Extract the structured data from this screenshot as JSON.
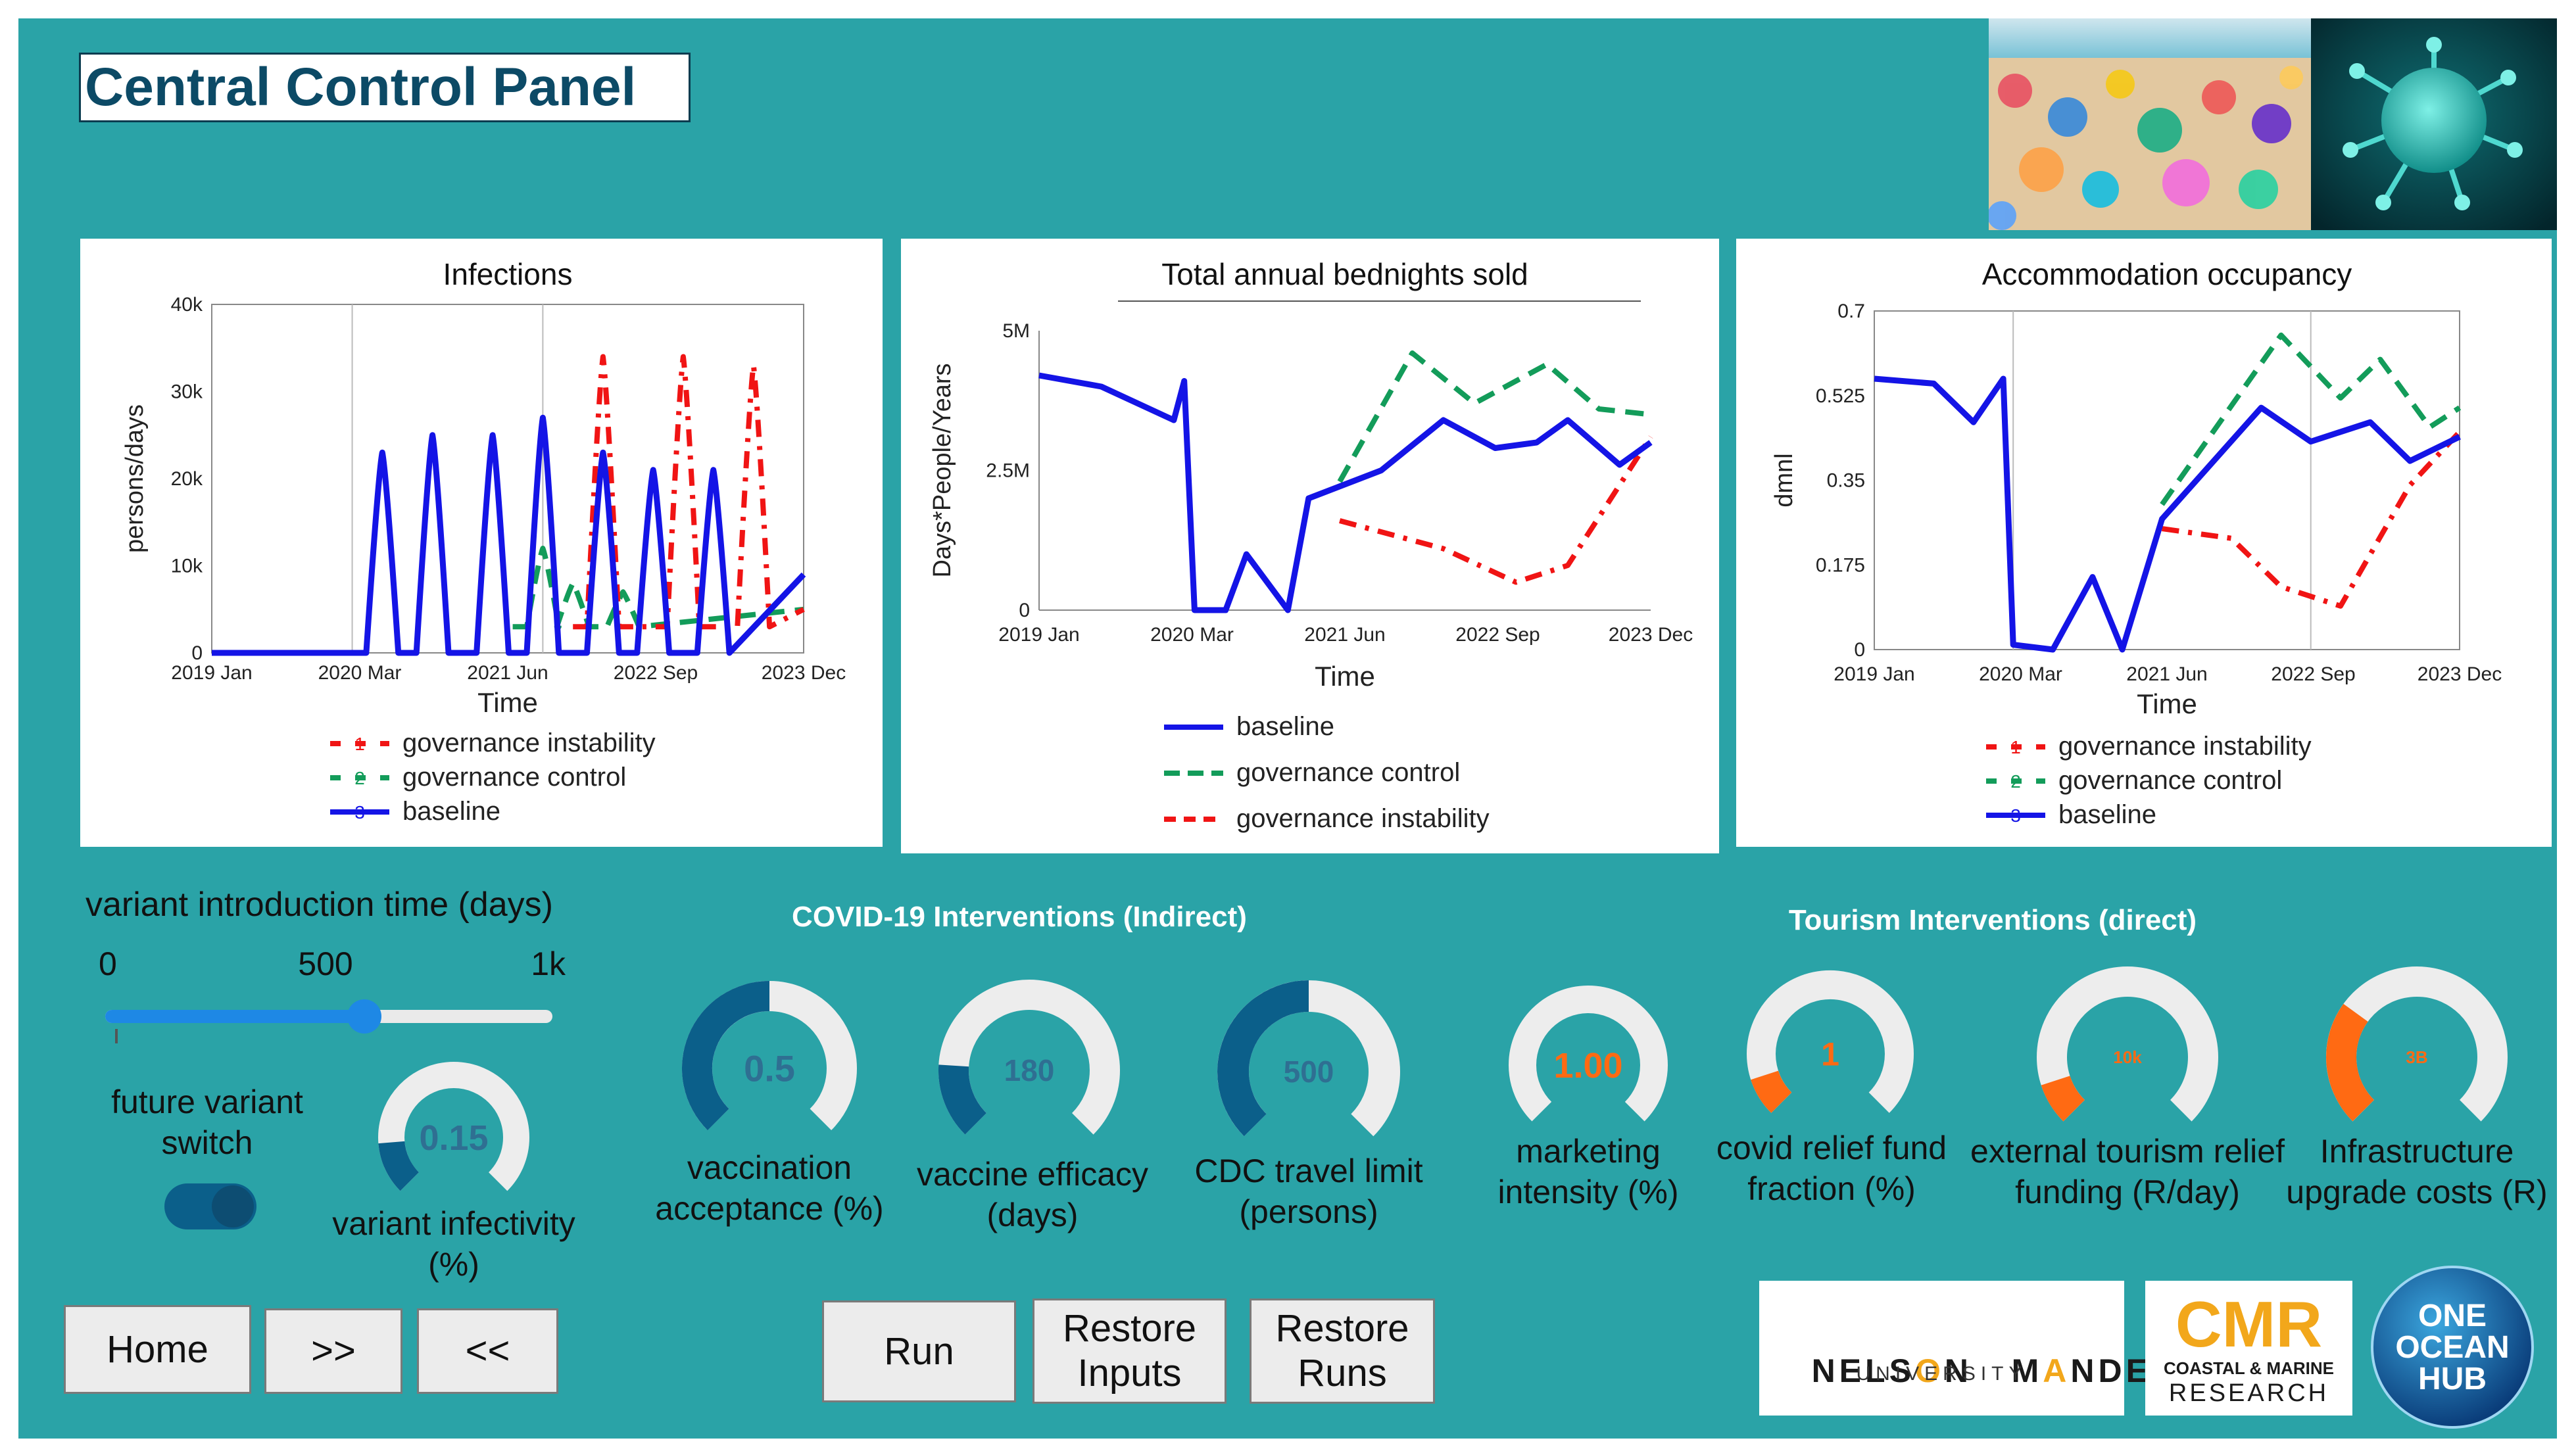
{
  "title": "Central Control Panel",
  "colors": {
    "background": "#2aa3a7",
    "baseline": "#1414e6",
    "control": "#139c5a",
    "instability": "#f01414",
    "gauge_dark": "#0b5f8a",
    "gauge_orange": "#ff6a13"
  },
  "charts": [
    {
      "title": "Infections",
      "xlabel": "Time",
      "ylabel": "persons/days",
      "x_ticks": [
        "2019 Jan",
        "2020 Mar",
        "2021 Jun",
        "2022 Sep",
        "2023 Dec"
      ],
      "y_ticks": [
        "0",
        "10k",
        "20k",
        "30k",
        "40k"
      ],
      "legend": [
        {
          "marker": "1",
          "label": "governance instability"
        },
        {
          "marker": "2",
          "label": "governance control"
        },
        {
          "marker": "3",
          "label": "baseline"
        }
      ]
    },
    {
      "title": "Total annual bednights sold",
      "xlabel": "Time",
      "ylabel": "Days*People/Years",
      "x_ticks": [
        "2019 Jan",
        "2020 Mar",
        "2021 Jun",
        "2022 Sep",
        "2023 Dec"
      ],
      "y_ticks": [
        "0",
        "2.5M",
        "5M"
      ],
      "legend": [
        {
          "label": "baseline"
        },
        {
          "label": "governance control"
        },
        {
          "label": "governance instability"
        }
      ]
    },
    {
      "title": "Accommodation occupancy",
      "xlabel": "Time",
      "ylabel": "dmnl",
      "x_ticks": [
        "2019 Jan",
        "2020 Mar",
        "2021 Jun",
        "2022 Sep",
        "2023 Dec"
      ],
      "y_ticks": [
        "0",
        "0.175",
        "0.35",
        "0.525",
        "0.7"
      ],
      "legend": [
        {
          "marker": "1",
          "label": "governance instability"
        },
        {
          "marker": "2",
          "label": "governance control"
        },
        {
          "marker": "3",
          "label": "baseline"
        }
      ]
    }
  ],
  "chart_data": [
    {
      "type": "line",
      "title": "Infections",
      "xlabel": "Time",
      "ylabel": "persons/days",
      "x_range": [
        "2019 Jan",
        "2023 Dec"
      ],
      "ylim": [
        0,
        40000
      ],
      "series": [
        {
          "name": "baseline",
          "peaks": [
            {
              "x": "2020 Jun",
              "y": 23000
            },
            {
              "x": "2020 Nov",
              "y": 25000
            },
            {
              "x": "2021 May",
              "y": 25000
            },
            {
              "x": "2021 Oct",
              "y": 27000
            },
            {
              "x": "2022 Apr",
              "y": 23000
            },
            {
              "x": "2022 Sep",
              "y": 21000
            },
            {
              "x": "2023 Mar",
              "y": 21000
            }
          ]
        },
        {
          "name": "governance control",
          "peaks": [
            {
              "x": "2021 Oct",
              "y": 12000
            },
            {
              "x": "2022 Jan",
              "y": 8000
            },
            {
              "x": "2022 Jun",
              "y": 7000
            }
          ]
        },
        {
          "name": "governance instability",
          "peaks": [
            {
              "x": "2022 Apr",
              "y": 34000
            },
            {
              "x": "2022 Dec",
              "y": 34000
            },
            {
              "x": "2023 Jul",
              "y": 33000
            }
          ]
        }
      ]
    },
    {
      "type": "line",
      "title": "Total annual bednights sold",
      "xlabel": "Time",
      "ylabel": "Days*People/Years",
      "x_range": [
        "2019 Jan",
        "2023 Dec"
      ],
      "ylim": [
        0,
        5000000
      ],
      "series": [
        {
          "name": "baseline",
          "points": [
            [
              "2019 Jan",
              4200000
            ],
            [
              "2019 Jul",
              4000000
            ],
            [
              "2020 Feb",
              3400000
            ],
            [
              "2020 Mar",
              4100000
            ],
            [
              "2020 Apr",
              0
            ],
            [
              "2020 Jul",
              0
            ],
            [
              "2020 Sep",
              1000000
            ],
            [
              "2021 Jan",
              0
            ],
            [
              "2021 Mar",
              2000000
            ],
            [
              "2021 Oct",
              2500000
            ],
            [
              "2022 Apr",
              3400000
            ],
            [
              "2022 Sep",
              2900000
            ],
            [
              "2023 Jan",
              3000000
            ],
            [
              "2023 Apr",
              3400000
            ],
            [
              "2023 Sep",
              2600000
            ],
            [
              "2023 Dec",
              3000000
            ]
          ]
        },
        {
          "name": "governance control",
          "points": [
            [
              "2021 Jun",
              2300000
            ],
            [
              "2022 Jan",
              4600000
            ],
            [
              "2022 Jul",
              3700000
            ],
            [
              "2023 Feb",
              4400000
            ],
            [
              "2023 Jul",
              3600000
            ],
            [
              "2023 Dec",
              3500000
            ]
          ]
        },
        {
          "name": "governance instability",
          "points": [
            [
              "2021 Jun",
              1600000
            ],
            [
              "2022 Apr",
              1100000
            ],
            [
              "2022 Nov",
              500000
            ],
            [
              "2023 Apr",
              800000
            ],
            [
              "2023 Dec",
              3100000
            ]
          ]
        }
      ]
    },
    {
      "type": "line",
      "title": "Accommodation occupancy",
      "xlabel": "Time",
      "ylabel": "dmnl",
      "x_range": [
        "2019 Jan",
        "2023 Dec"
      ],
      "ylim": [
        0,
        0.7
      ],
      "series": [
        {
          "name": "baseline",
          "points": [
            [
              "2019 Jan",
              0.56
            ],
            [
              "2019 Jul",
              0.55
            ],
            [
              "2019 Nov",
              0.47
            ],
            [
              "2020 Feb",
              0.56
            ],
            [
              "2020 Mar",
              0.01
            ],
            [
              "2020 Jul",
              0.0
            ],
            [
              "2020 Nov",
              0.15
            ],
            [
              "2021 Feb",
              0.0
            ],
            [
              "2021 Jun",
              0.27
            ],
            [
              "2022 Apr",
              0.5
            ],
            [
              "2022 Sep",
              0.43
            ],
            [
              "2023 Mar",
              0.47
            ],
            [
              "2023 Jul",
              0.39
            ],
            [
              "2023 Dec",
              0.44
            ]
          ]
        },
        {
          "name": "governance control",
          "points": [
            [
              "2021 Jun",
              0.3
            ],
            [
              "2022 Jun",
              0.65
            ],
            [
              "2022 Dec",
              0.52
            ],
            [
              "2023 Apr",
              0.6
            ],
            [
              "2023 Sep",
              0.46
            ],
            [
              "2023 Dec",
              0.5
            ]
          ]
        },
        {
          "name": "governance instability",
          "points": [
            [
              "2021 Jun",
              0.25
            ],
            [
              "2022 Jan",
              0.23
            ],
            [
              "2022 Jun",
              0.13
            ],
            [
              "2022 Dec",
              0.09
            ],
            [
              "2023 Jul",
              0.34
            ],
            [
              "2023 Dec",
              0.45
            ]
          ]
        }
      ]
    }
  ],
  "slider": {
    "label": "variant introduction time (days)",
    "tick_min": "0",
    "tick_mid": "500",
    "tick_max": "1k",
    "value_fraction": 0.58
  },
  "switch": {
    "label": "future variant switch",
    "on": true
  },
  "sections": {
    "covid": "COVID-19 Interventions (Indirect)",
    "tourism": "Tourism Interventions (direct)"
  },
  "gauges": [
    {
      "value": "0.15",
      "fraction": 0.15,
      "color": "#0b5f8a",
      "label": "variant infectivity (%)"
    },
    {
      "value": "0.5",
      "fraction": 0.5,
      "color": "#0b5f8a",
      "label": "vaccination acceptance (%)"
    },
    {
      "value": "180",
      "fraction": 0.18,
      "color": "#0b5f8a",
      "label": "vaccine efficacy (days)"
    },
    {
      "value": "500",
      "fraction": 0.5,
      "color": "#0b5f8a",
      "label": "CDC travel limit (persons)"
    },
    {
      "value": "1.00",
      "fraction": 0.0,
      "color": "#ff6a13",
      "label": "marketing intensity (%)"
    },
    {
      "value": "1",
      "fraction": 0.1,
      "color": "#ff6a13",
      "label": "covid relief fund fraction (%)"
    },
    {
      "value": "10k",
      "fraction": 0.1,
      "color": "#ff6a13",
      "label": "external tourism relief funding (R/day)"
    },
    {
      "value": "3B",
      "fraction": 0.3,
      "color": "#ff6a13",
      "label": "Infrastructure upgrade costs (R)"
    }
  ],
  "buttons": {
    "home": "Home",
    "next": ">>",
    "prev": "<<",
    "run": "Run",
    "restore_inputs": "Restore Inputs",
    "restore_runs": "Restore Runs"
  },
  "logos": {
    "nmu_name_a": "NELS",
    "nmu_o": "O",
    "nmu_name_b": "N   M",
    "nmu_a": "A",
    "nmu_name_c": "NDELA",
    "nmu_university": "UNIVERSITY",
    "cmr_big": "CMR",
    "cmr_line1": "COASTAL & MARINE",
    "cmr_line2": "RESEARCH",
    "ooh_line1": "ONE",
    "ooh_line2": "OCEAN",
    "ooh_line3": "HUB"
  }
}
